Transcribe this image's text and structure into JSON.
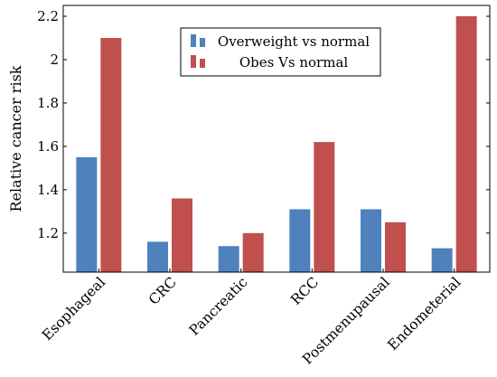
{
  "chart_data": {
    "type": "bar",
    "title": "",
    "xlabel": "",
    "ylabel": "Relative cancer risk",
    "categories": [
      "Esophageal",
      "CRC",
      "Pancreatic",
      "RCC",
      "Postmenupausal",
      "Endometerial"
    ],
    "series": [
      {
        "name": "Overweight vs normal",
        "color": "#4f81bd",
        "values": [
          1.55,
          1.16,
          1.14,
          1.31,
          1.31,
          1.13
        ]
      },
      {
        "name": "Obes Vs normal",
        "color": "#c0504d",
        "values": [
          2.1,
          1.36,
          1.2,
          1.62,
          1.25,
          2.2
        ]
      }
    ],
    "ylim": [
      1.02,
      2.25
    ],
    "bar_baseline": 1.02,
    "yticks": [
      1.2,
      1.4,
      1.6,
      1.8,
      2,
      2.2
    ],
    "ytick_labels": [
      "1.2",
      "1.4",
      "1.6",
      "1.8",
      "2",
      "2.2"
    ],
    "grid": false,
    "legend_position": "top-center"
  }
}
